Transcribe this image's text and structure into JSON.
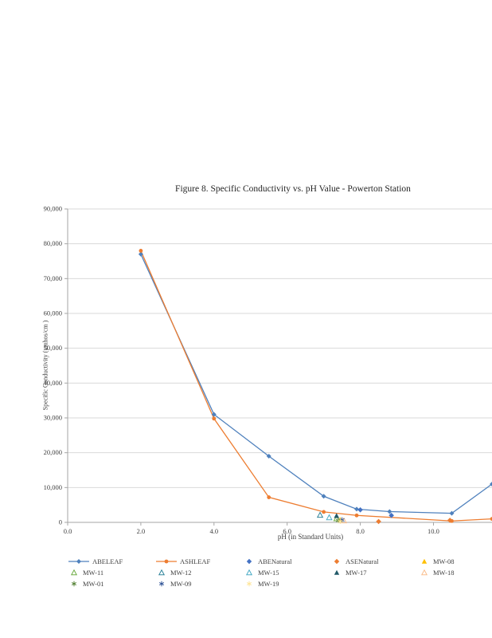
{
  "chart_data": {
    "type": "line",
    "title": "Figure 8. Specific Conductivity vs. pH Value  - Powerton  Station",
    "xlabel": "pH (in Standard Units)",
    "ylabel": "Specific Conductivity (umhos/cm )",
    "xlim": [
      0,
      11.6
    ],
    "ylim": [
      0,
      90000
    ],
    "grid": "horizontal",
    "legend_position": "bottom",
    "x_ticks": [
      {
        "v": 0,
        "label": "0.0"
      },
      {
        "v": 2,
        "label": "2.0"
      },
      {
        "v": 4,
        "label": "4.0"
      },
      {
        "v": 6,
        "label": "6.0"
      },
      {
        "v": 8,
        "label": "8.0"
      },
      {
        "v": 10,
        "label": "10.0"
      }
    ],
    "y_ticks": [
      {
        "v": 0,
        "label": "0"
      },
      {
        "v": 10000,
        "label": "10,000"
      },
      {
        "v": 20000,
        "label": "20,000"
      },
      {
        "v": 30000,
        "label": "30,000"
      },
      {
        "v": 40000,
        "label": "40,000"
      },
      {
        "v": 50000,
        "label": "50,000"
      },
      {
        "v": 60000,
        "label": "60,000"
      },
      {
        "v": 70000,
        "label": "70,000"
      },
      {
        "v": 80000,
        "label": "80,000"
      },
      {
        "v": 90000,
        "label": "90,000"
      }
    ],
    "series": [
      {
        "name": "ABELEAF",
        "type": "line",
        "color": "#4F81BD",
        "marker": "diamond",
        "points": [
          [
            2.0,
            77000
          ],
          [
            4.0,
            31000
          ],
          [
            5.5,
            19000
          ],
          [
            7.0,
            7500
          ],
          [
            7.9,
            3800
          ],
          [
            8.8,
            3100
          ],
          [
            10.5,
            2600
          ],
          [
            11.6,
            11000
          ]
        ]
      },
      {
        "name": "ASHLEAF",
        "type": "line",
        "color": "#ED7D31",
        "marker": "circle",
        "points": [
          [
            2.0,
            78000
          ],
          [
            4.0,
            29800
          ],
          [
            5.5,
            7200
          ],
          [
            7.0,
            3000
          ],
          [
            7.9,
            2000
          ],
          [
            10.5,
            400
          ],
          [
            11.6,
            1000
          ]
        ]
      },
      {
        "name": "ABENatural",
        "type": "scatter",
        "color": "#4472C4",
        "marker": "diamond",
        "points": [
          [
            8.0,
            3600
          ],
          [
            8.85,
            2000
          ]
        ]
      },
      {
        "name": "ASENatural",
        "type": "scatter",
        "color": "#ED7D31",
        "marker": "diamond",
        "points": [
          [
            8.5,
            250
          ],
          [
            10.45,
            600
          ]
        ]
      },
      {
        "name": "MW-08",
        "type": "scatter",
        "color": "#FFC000",
        "marker": "triangle",
        "points": [
          [
            7.45,
            800
          ]
        ]
      },
      {
        "name": "MW-11",
        "type": "scatter",
        "color": "#70AD47",
        "marker": "triangle-open",
        "points": [
          [
            7.35,
            1100
          ]
        ]
      },
      {
        "name": "MW-12",
        "type": "scatter",
        "color": "#31859C",
        "marker": "triangle-open",
        "points": [
          [
            6.9,
            2100
          ]
        ]
      },
      {
        "name": "MW-15",
        "type": "scatter",
        "color": "#4BACC6",
        "marker": "triangle-open",
        "points": [
          [
            7.15,
            1400
          ]
        ]
      },
      {
        "name": "MW-17",
        "type": "scatter",
        "color": "#215968",
        "marker": "triangle",
        "points": [
          [
            7.35,
            1900
          ]
        ]
      },
      {
        "name": "MW-18",
        "type": "scatter",
        "color": "#FABF8F",
        "marker": "triangle-open",
        "points": [
          [
            7.55,
            500
          ]
        ]
      },
      {
        "name": "MW-01",
        "type": "scatter",
        "color": "#548235",
        "marker": "asterisk",
        "points": [
          [
            7.4,
            550
          ]
        ]
      },
      {
        "name": "MW-09",
        "type": "scatter",
        "color": "#305496",
        "marker": "asterisk",
        "points": [
          [
            7.5,
            700
          ]
        ]
      },
      {
        "name": "MW-19",
        "type": "scatter",
        "color": "#FFE699",
        "marker": "asterisk",
        "points": [
          [
            7.45,
            300
          ]
        ]
      }
    ],
    "style_colors": {
      "gridline": "#D9D9D9",
      "axis": "#A6A6A6",
      "tick_text": "#404040"
    }
  }
}
